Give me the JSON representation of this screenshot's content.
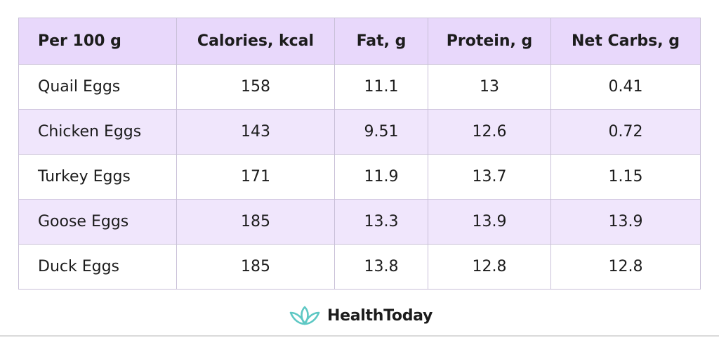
{
  "table": {
    "headers": [
      "Per 100 g",
      "Calories, kcal",
      "Fat, g",
      "Protein, g",
      "Net Carbs, g"
    ],
    "rows": [
      [
        "Quail Eggs",
        "158",
        "11.1",
        "13",
        "0.41"
      ],
      [
        "Chicken Eggs",
        "143",
        "9.51",
        "12.6",
        "0.72"
      ],
      [
        "Turkey Eggs",
        "171",
        "11.9",
        "13.7",
        "1.15"
      ],
      [
        "Goose Eggs",
        "185",
        "13.3",
        "13.9",
        "13.9"
      ],
      [
        "Duck Eggs",
        "185",
        "13.8",
        "12.8",
        "12.8"
      ]
    ]
  },
  "brand": {
    "name": "HealthToday",
    "icon": "lotus-icon",
    "color": "#5ec8c4"
  },
  "colors": {
    "header_bg": "#e8d8fb",
    "alt_row_bg": "#f0e6fc",
    "border": "#c9c0d8"
  }
}
